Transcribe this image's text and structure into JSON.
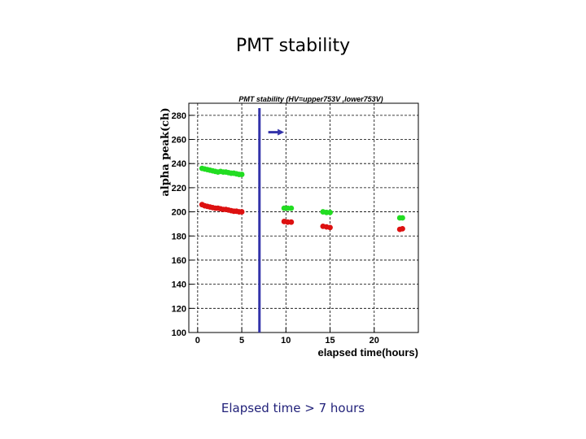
{
  "slide": {
    "title": "PMT stability",
    "caption": "Elapsed time > 7 hours"
  },
  "chart_data": {
    "type": "scatter",
    "title": "PMT stability (HV=upper753V ,lower753V)",
    "xlabel": "elapsed time(hours)",
    "ylabel": "alpha peak(ch)",
    "xlim": [
      -1,
      25
    ],
    "ylim": [
      100,
      290
    ],
    "xticks": [
      0,
      5,
      10,
      15,
      20
    ],
    "yticks": [
      100,
      120,
      140,
      160,
      180,
      200,
      220,
      240,
      260,
      280
    ],
    "grid": true,
    "series": [
      {
        "color": "#22dd22",
        "points": [
          [
            0.5,
            236
          ],
          [
            0.8,
            235.5
          ],
          [
            1.1,
            235
          ],
          [
            1.4,
            234.5
          ],
          [
            1.7,
            234
          ],
          [
            2.0,
            233.5
          ],
          [
            2.3,
            233
          ],
          [
            2.6,
            233.5
          ],
          [
            2.9,
            233
          ],
          [
            3.2,
            233
          ],
          [
            3.5,
            232.5
          ],
          [
            3.8,
            232
          ],
          [
            4.1,
            232
          ],
          [
            4.4,
            231.5
          ],
          [
            4.7,
            231
          ],
          [
            5.0,
            231
          ],
          [
            9.8,
            203
          ],
          [
            10.2,
            203
          ],
          [
            10.6,
            203
          ],
          [
            14.2,
            200
          ],
          [
            14.6,
            199.5
          ],
          [
            15.0,
            199.5
          ],
          [
            22.9,
            195
          ],
          [
            23.2,
            195
          ]
        ]
      },
      {
        "color": "#dd1111",
        "points": [
          [
            0.5,
            206
          ],
          [
            0.8,
            205
          ],
          [
            1.1,
            204.5
          ],
          [
            1.4,
            204
          ],
          [
            1.7,
            203.5
          ],
          [
            2.0,
            203
          ],
          [
            2.3,
            203
          ],
          [
            2.6,
            202.5
          ],
          [
            2.9,
            202
          ],
          [
            3.2,
            202
          ],
          [
            3.5,
            201.5
          ],
          [
            3.8,
            201
          ],
          [
            4.1,
            200.5
          ],
          [
            4.4,
            200.5
          ],
          [
            4.7,
            200
          ],
          [
            5.0,
            200
          ],
          [
            9.8,
            192
          ],
          [
            10.2,
            191.5
          ],
          [
            10.6,
            191.5
          ],
          [
            14.2,
            188
          ],
          [
            14.6,
            187.5
          ],
          [
            15.0,
            187
          ],
          [
            22.9,
            185.5
          ],
          [
            23.2,
            186
          ]
        ]
      }
    ],
    "marker_line": {
      "x": 7,
      "color": "#3333aa"
    },
    "arrow": {
      "x_from": 8,
      "x_to": 9.8,
      "y": 266,
      "color": "#3333aa"
    }
  }
}
